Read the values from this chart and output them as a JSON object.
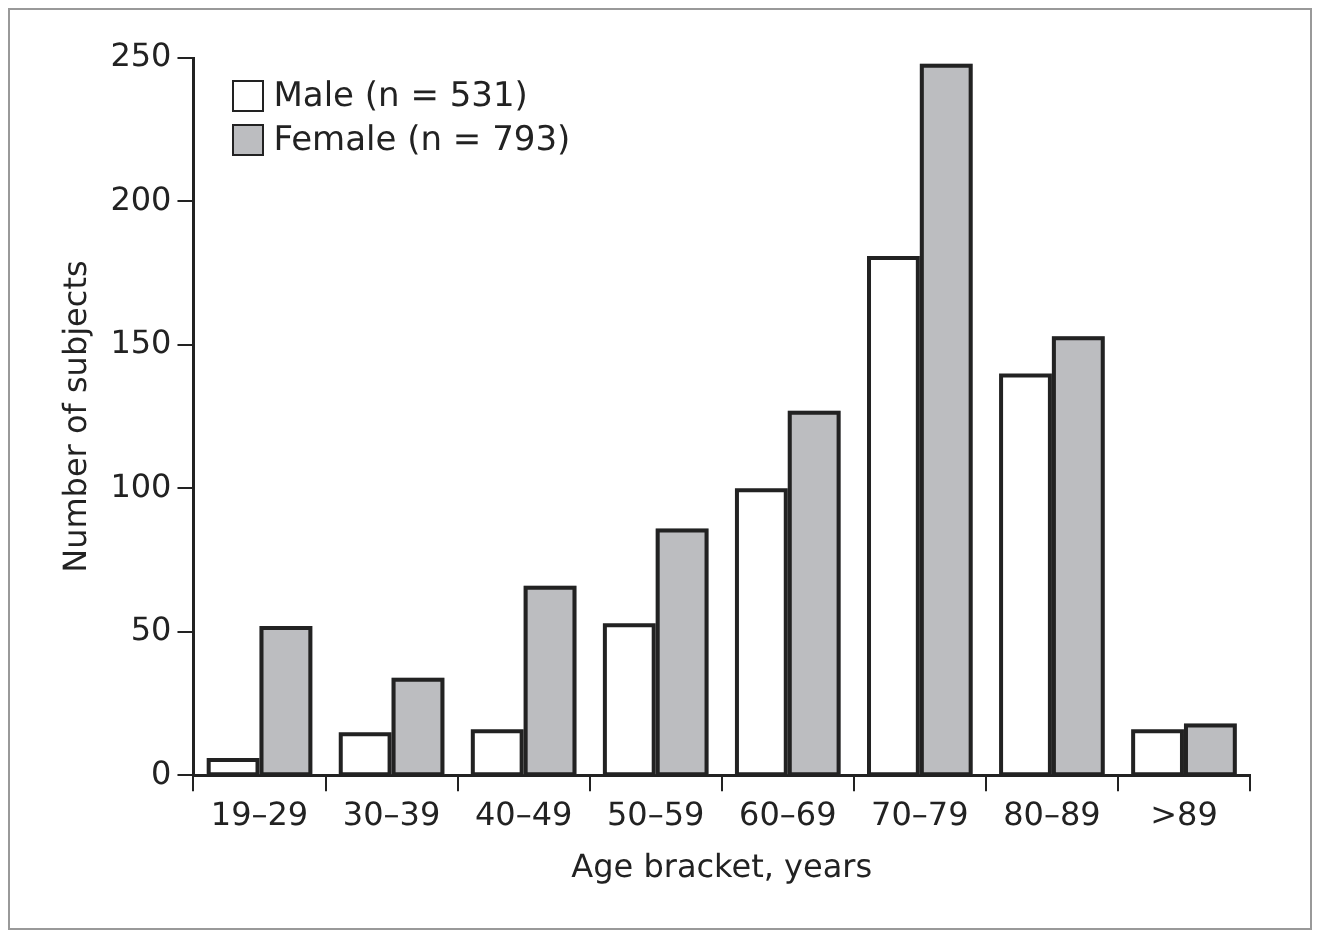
{
  "chart_data": {
    "type": "bar",
    "xlabel": "Age bracket, years",
    "ylabel": "Number of subjects",
    "categories": [
      "19–29",
      "30–39",
      "40–49",
      "50–59",
      "60–69",
      "70–79",
      "80–89",
      ">89"
    ],
    "series": [
      {
        "name": "Male (n = 531)",
        "color": "#ffffff",
        "values": [
          6,
          15,
          16,
          53,
          100,
          181,
          140,
          16
        ]
      },
      {
        "name": "Female (n = 793)",
        "color": "#bcbdc0",
        "values": [
          52,
          34,
          66,
          86,
          127,
          248,
          153,
          18
        ]
      }
    ],
    "ylim": [
      0,
      250
    ],
    "yticks": [
      0,
      50,
      100,
      150,
      200,
      250
    ],
    "grid": false,
    "legend": "top left"
  }
}
